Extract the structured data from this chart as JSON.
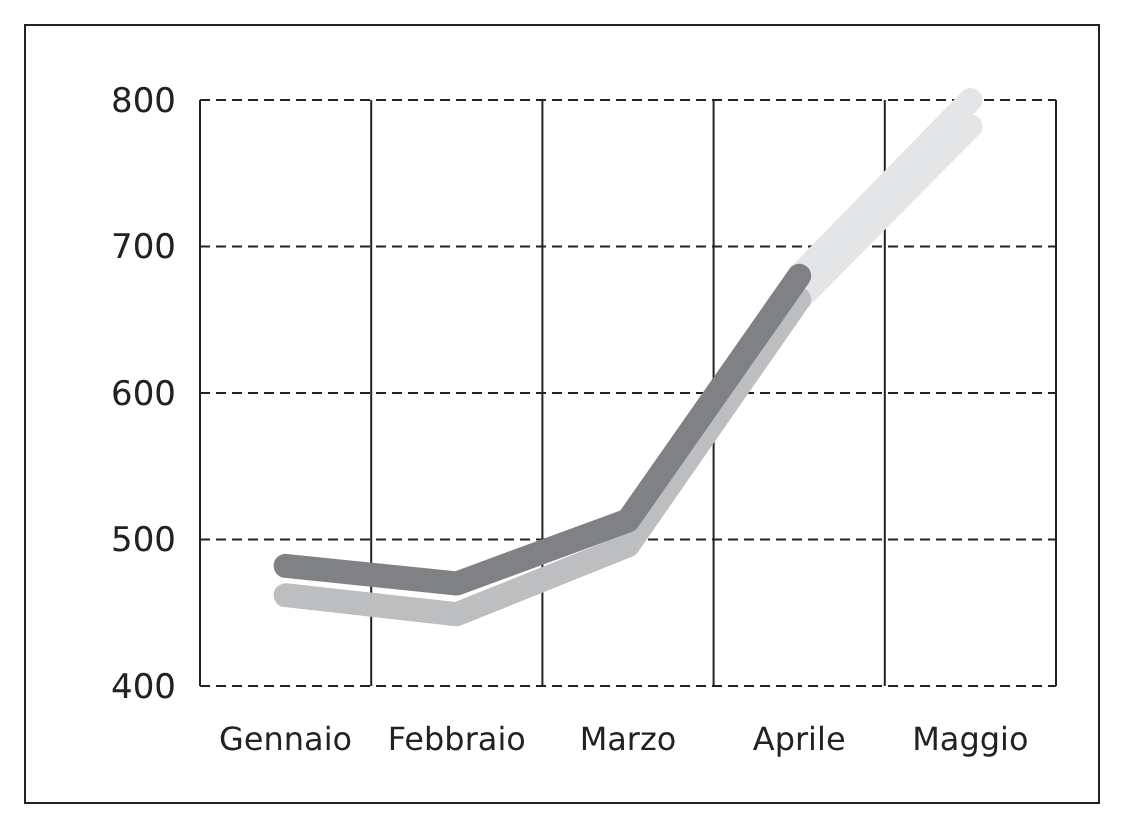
{
  "chart_data": {
    "type": "line",
    "categories": [
      "Gennaio",
      "Febbraio",
      "Marzo",
      "Aprile",
      "Maggio"
    ],
    "series": [
      {
        "color": "#e4e5e7",
        "values": [
          null,
          null,
          null,
          680,
          800
        ]
      },
      {
        "color": "#e4e5e7",
        "values": [
          null,
          null,
          null,
          664,
          782
        ]
      },
      {
        "color": "#bdbec0",
        "values": [
          462,
          449,
          496,
          664,
          null
        ]
      },
      {
        "color": "#808184",
        "values": [
          482,
          470,
          513,
          680,
          null
        ]
      }
    ],
    "ylim": [
      400,
      800
    ],
    "yticks": [
      400,
      500,
      600,
      700,
      800
    ],
    "grid": true,
    "marker": "none",
    "line_style": "solid"
  }
}
